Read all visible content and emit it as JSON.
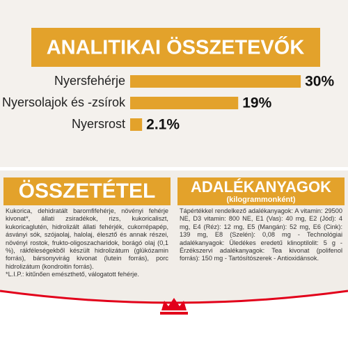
{
  "header": {
    "title": "ANALITIKAI ÖSSZETEVŐK"
  },
  "chart_data": {
    "type": "bar",
    "orientation": "horizontal",
    "categories": [
      "Nyersfehérje",
      "Nyersolajok és -zsírok",
      "Nyersrost"
    ],
    "values": [
      30,
      19,
      2.1
    ],
    "value_labels": [
      "30%",
      "19%",
      "2.1%"
    ],
    "color": "#e3a22b"
  },
  "composition": {
    "title": "ÖSSZETÉTEL",
    "text": "Kukorica, dehidratált baromfifehérje, növényi fehérje kivonat*, állati zsiradékok, rizs, kukoricaliszt, kukoricaglutén, hidrolizált állati fehérjék, cukorrépapép, ásványi sók, szójaolaj, halolaj, élesztő és annak részei, növényi rostok, frukto-oligoszacharidok, borágó olaj (0,1 %), rákféleségekből készült hidrolizátum (glükózamin forrás), bársonyvirág kivonat (lutein forrás), porc hidrolizátum (kondroitin forrás).",
    "note": "*L.I.P.: kitűnően emészthető, válogatott fehérje."
  },
  "additives": {
    "title": "ADALÉKANYAGOK",
    "subtitle": "(kilogrammonként)",
    "text": "Tápértékkel rendelkező adalékanyagok: A vitamin: 29500 NE, D3 vitamin: 800 NE, E1 (Vas): 40 mg, E2 (Jód): 4 mg, E4 (Réz): 12 mg, E5 (Mangán): 52 mg, E6 (Cink): 139 mg, E8 (Szelén): 0,08 mg - Technológiai adalékanyagok: Üledékes eredetű klinoptilolit: 5 g - Érzékszervi adalékanyagok: Tea kivonat (polifenol forrás): 150 mg - Tartósítószerek - Antioxidánsok."
  }
}
